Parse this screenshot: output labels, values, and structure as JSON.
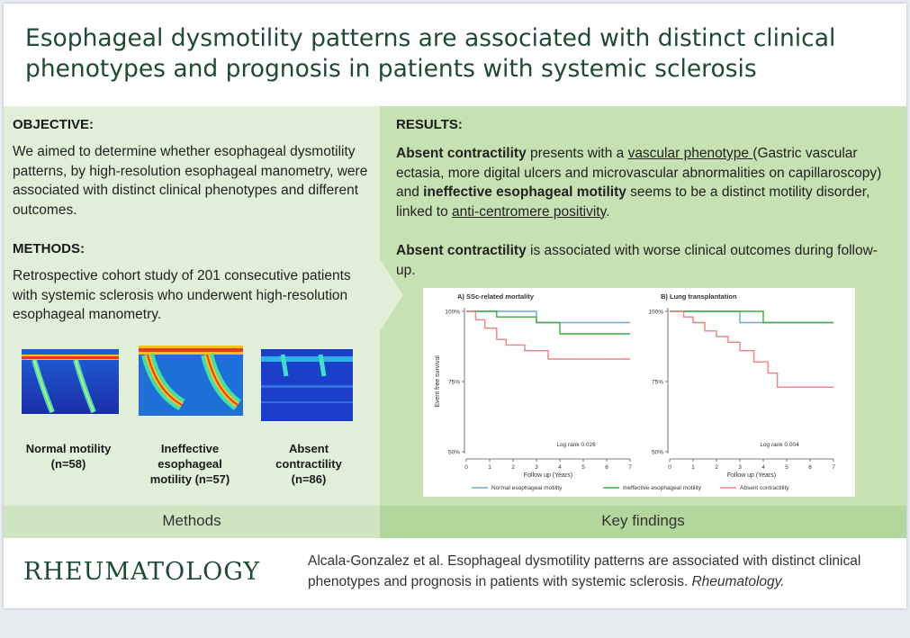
{
  "title": "Esophageal dysmotility patterns are associated with distinct clinical phenotypes and prognosis in patients with systemic sclerosis",
  "left": {
    "objective_heading": "OBJECTIVE:",
    "objective_text": "We aimed to determine whether esophageal dysmotility patterns, by high-resolution esophageal manometry, were associated with distinct clinical phenotypes and different outcomes.",
    "methods_heading": "METHODS:",
    "methods_text": "Retrospective cohort study of 201 consecutive patients with systemic sclerosis who underwent high-resolution esophageal manometry.",
    "groups": [
      {
        "label_line1": "Normal motility",
        "label_line2": "(n=58)",
        "label_line3": ""
      },
      {
        "label_line1": "Ineffective",
        "label_line2": "esophageal",
        "label_line3": "motility (n=57)"
      },
      {
        "label_line1": "Absent",
        "label_line2": "contractility",
        "label_line3": "(n=86)"
      }
    ],
    "footer": "Methods"
  },
  "right": {
    "results_heading": "RESULTS:",
    "p1_bold1": "Absent contractility",
    "p1_text1": " presents with a ",
    "p1_underline1": "vascular phenotype ",
    "p1_text2": "(Gastric vascular ectasia, more digital ulcers and microvascular abnormalities on capillaroscopy) and ",
    "p1_bold2": "ineffective esophageal motility",
    "p1_text3": " seems to be a distinct motility disorder, linked to ",
    "p1_underline2": "anti-centromere positivity",
    "p1_text4": ".",
    "p2_bold": "Absent contractility",
    "p2_text": " is associated with worse clinical outcomes during follow-up.",
    "footer": "Key findings"
  },
  "chart_data": {
    "type": "line",
    "step": true,
    "panels": [
      {
        "title": "A) SSc-related mortality",
        "annotation": "Log rank 0.026",
        "series": [
          {
            "name": "Normal esophageal motility",
            "color": "#6fa8dc",
            "x": [
              0,
              3,
              3,
              7
            ],
            "y": [
              100,
              100,
              96,
              96
            ]
          },
          {
            "name": "Ineffective esophageal motility",
            "color": "#3caa3c",
            "x": [
              0,
              1.3,
              1.3,
              3,
              3,
              4,
              4,
              7
            ],
            "y": [
              100,
              100,
              98,
              98,
              96,
              96,
              92,
              92
            ]
          },
          {
            "name": "Absent contractility",
            "color": "#f08080",
            "x": [
              0,
              0.4,
              0.4,
              0.8,
              0.8,
              1.3,
              1.3,
              1.7,
              1.7,
              2.5,
              2.5,
              3.5,
              3.5,
              7
            ],
            "y": [
              100,
              100,
              97,
              97,
              94,
              94,
              90,
              90,
              88,
              88,
              86,
              86,
              83,
              83
            ]
          }
        ]
      },
      {
        "title": "B) Lung transplantation",
        "annotation": "Log rank 0.004",
        "series": [
          {
            "name": "Normal esophageal motility",
            "color": "#6fa8dc",
            "x": [
              0,
              3,
              3,
              7
            ],
            "y": [
              100,
              100,
              96,
              96
            ]
          },
          {
            "name": "Ineffective esophageal motility",
            "color": "#3caa3c",
            "x": [
              0,
              4,
              4,
              7
            ],
            "y": [
              100,
              100,
              96,
              96
            ]
          },
          {
            "name": "Absent contractility",
            "color": "#f08080",
            "x": [
              0,
              0.6,
              0.6,
              1,
              1,
              1.5,
              1.5,
              2,
              2,
              2.5,
              2.5,
              3,
              3,
              3.6,
              3.6,
              4.2,
              4.2,
              4.6,
              4.6,
              7
            ],
            "y": [
              100,
              100,
              98,
              98,
              96,
              96,
              93,
              93,
              91,
              91,
              89,
              89,
              86,
              86,
              82,
              82,
              78,
              78,
              73,
              73
            ]
          }
        ]
      }
    ],
    "ylabel": "Event free survival",
    "xlabel": "Follow up (Years)",
    "xticks": [
      "0",
      "1",
      "2",
      "3",
      "4",
      "5",
      "6",
      "7"
    ],
    "yticks": [
      "50%",
      "75%",
      "100%"
    ],
    "ylim": [
      50,
      100
    ],
    "xlim": [
      0,
      7
    ],
    "legend": [
      "Normal esophageal motility",
      "Ineffective esophageal motility",
      "Absent contractility"
    ],
    "legend_position": "bottom"
  },
  "footer": {
    "journal": "RHEUMATOLOGY",
    "citation_text": "Alcala-Gonzalez et al. Esophageal dysmotility patterns are associated with distinct clinical phenotypes and prognosis in patients with systemic sclerosis. ",
    "citation_journal": "Rheumatology."
  }
}
